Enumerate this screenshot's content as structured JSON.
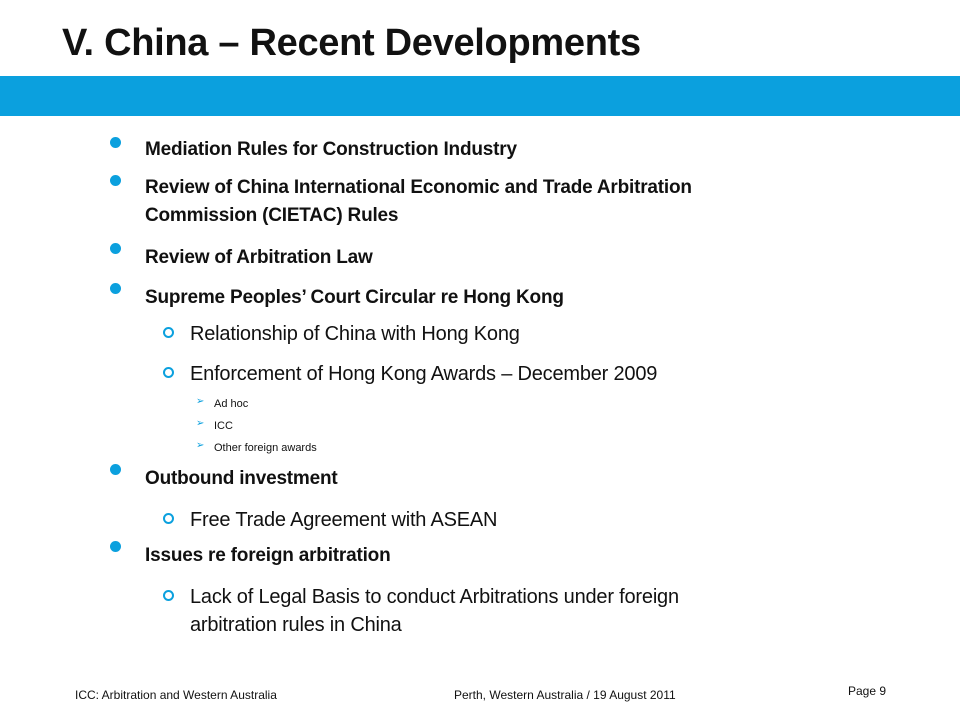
{
  "slide": {
    "title": "V.  China – Recent Developments",
    "colors": {
      "accent": "#0ba0de",
      "text": "#111111"
    },
    "bullets": {
      "b1": "Mediation Rules for Construction Industry",
      "b2_line1": "Review of China International Economic and Trade Arbitration",
      "b2_line2": "Commission (CIETAC) Rules",
      "b3": "Review of Arbitration Law",
      "b4": "Supreme Peoples’ Court Circular re Hong Kong",
      "b4_1": "Relationship of China with Hong Kong",
      "b4_2": "Enforcement of Hong Kong Awards – December 2009",
      "b4_2_a": "Ad hoc",
      "b4_2_b": "ICC",
      "b4_2_c": "Other foreign awards",
      "b5": "Outbound investment",
      "b5_1": "Free Trade Agreement  with ASEAN",
      "b6": "Issues re foreign arbitration",
      "b6_1_line1": "Lack of Legal Basis to conduct Arbitrations under foreign",
      "b6_1_line2": "arbitration rules in China"
    },
    "footer": {
      "left": "ICC: Arbitration and Western Australia",
      "center": "Perth, Western Australia / 19 August 2011",
      "page": "Page 9"
    }
  }
}
